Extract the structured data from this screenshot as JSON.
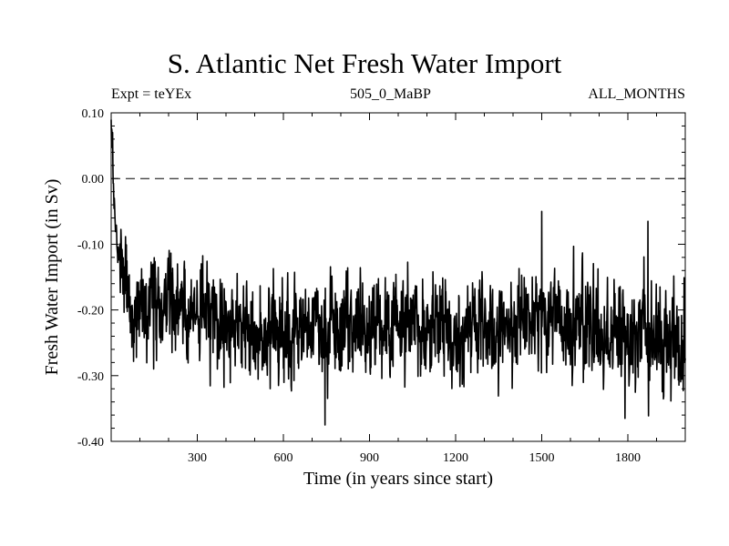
{
  "chart_data": {
    "type": "line",
    "title": "S. Atlantic Net Fresh Water Import",
    "subtitle_left": "Expt = teYEx",
    "subtitle_center": "505_0_MaBP",
    "subtitle_right": "ALL_MONTHS",
    "xlabel": "Time (in years since start)",
    "ylabel": "Fresh Water Import (in Sv)",
    "xlim": [
      0,
      2000
    ],
    "ylim": [
      -0.4,
      0.1
    ],
    "x_ticks": [
      300,
      600,
      900,
      1200,
      1500,
      1800
    ],
    "x_tick_labels": [
      "300",
      "600",
      "900",
      "1200",
      "1500",
      "1800"
    ],
    "y_ticks": [
      0.1,
      0.0,
      -0.1,
      -0.2,
      -0.3,
      -0.4
    ],
    "y_tick_labels": [
      "0.10",
      "0.00",
      "-0.10",
      "-0.20",
      "-0.30",
      "-0.40"
    ],
    "reference_line": {
      "y": 0.0,
      "style": "dashed"
    },
    "series": [
      {
        "name": "Net Fresh Water Import",
        "description": "annual series 0-2000 yrs: starts ~0.07 Sv, drops rapidly to ~-0.18 Sv within ~30 yrs, then fluctuates around -0.20 to -0.24 Sv",
        "anchor_x": [
          0,
          3,
          8,
          15,
          25,
          40,
          70,
          120,
          200,
          300,
          400,
          500,
          600,
          700,
          800,
          900,
          1000,
          1100,
          1200,
          1300,
          1400,
          1500,
          1600,
          1700,
          1800,
          1900,
          2000
        ],
        "anchor_mean": [
          0.07,
          0.05,
          -0.02,
          -0.07,
          -0.12,
          -0.16,
          -0.19,
          -0.2,
          -0.2,
          -0.21,
          -0.23,
          -0.235,
          -0.235,
          -0.23,
          -0.225,
          -0.225,
          -0.225,
          -0.225,
          -0.23,
          -0.225,
          -0.22,
          -0.21,
          -0.215,
          -0.22,
          -0.225,
          -0.23,
          -0.25
        ],
        "noise_sd": 0.038,
        "extremes_x": [
          5,
          745,
          1500,
          1790,
          1870
        ],
        "extremes_y": [
          0.07,
          -0.375,
          -0.05,
          -0.365,
          -0.065
        ]
      }
    ]
  }
}
